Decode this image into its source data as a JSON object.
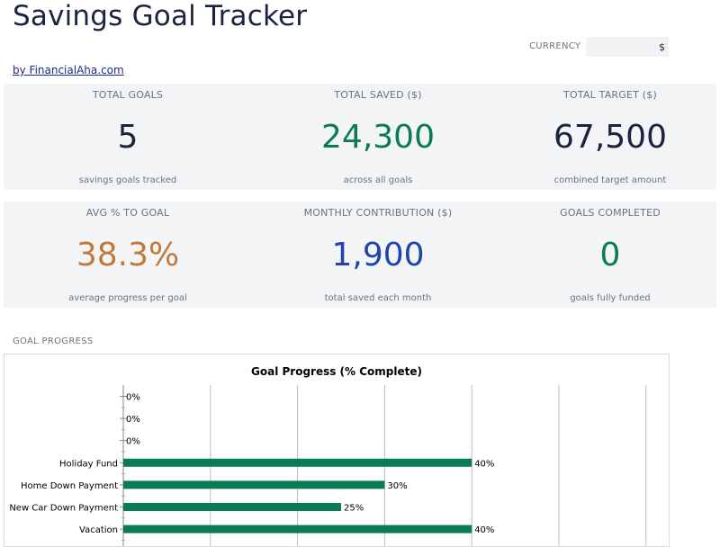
{
  "header": {
    "title": "Savings Goal Tracker",
    "byline": "by FinancialAha.com",
    "currency_label": "CURRENCY",
    "currency_value": "$"
  },
  "colors": {
    "navy": "#1a2340",
    "green": "#0a7a57",
    "orange": "#c0793a",
    "blue": "#1f45a8",
    "bar": "#0a7a57"
  },
  "stats": [
    {
      "label": "TOTAL GOALS",
      "value": "5",
      "sub": "savings goals tracked",
      "color": "#1a2340"
    },
    {
      "label": "TOTAL SAVED ($)",
      "value": "24,300",
      "sub": "across all goals",
      "color": "#0a7a57"
    },
    {
      "label": "TOTAL TARGET ($)",
      "value": "67,500",
      "sub": "combined target amount",
      "color": "#1a2340"
    },
    {
      "label": "AVG % TO GOAL",
      "value": "38.3%",
      "sub": "average progress per goal",
      "color": "#c0793a"
    },
    {
      "label": "MONTHLY CONTRIBUTION ($)",
      "value": "1,900",
      "sub": "total saved each month",
      "color": "#1f45a8"
    },
    {
      "label": "GOALS COMPLETED",
      "value": "0",
      "sub": "goals fully funded",
      "color": "#0a7a57"
    }
  ],
  "section": {
    "goal_progress_label": "GOAL PROGRESS"
  },
  "chart_data": {
    "type": "bar",
    "orientation": "horizontal",
    "title": "Goal Progress (% Complete)",
    "categories": [
      "",
      "",
      "",
      "Holiday Fund",
      "Home Down Payment",
      "New Car Down Payment",
      "Vacation"
    ],
    "values": [
      0,
      0,
      0,
      40,
      30,
      25,
      40
    ],
    "data_labels": [
      "0%",
      "0%",
      "0%",
      "40%",
      "30%",
      "25%",
      "40%"
    ],
    "xlim": [
      0,
      60
    ],
    "grid": true,
    "legend": "none",
    "bar_color": "#0a7a57"
  }
}
